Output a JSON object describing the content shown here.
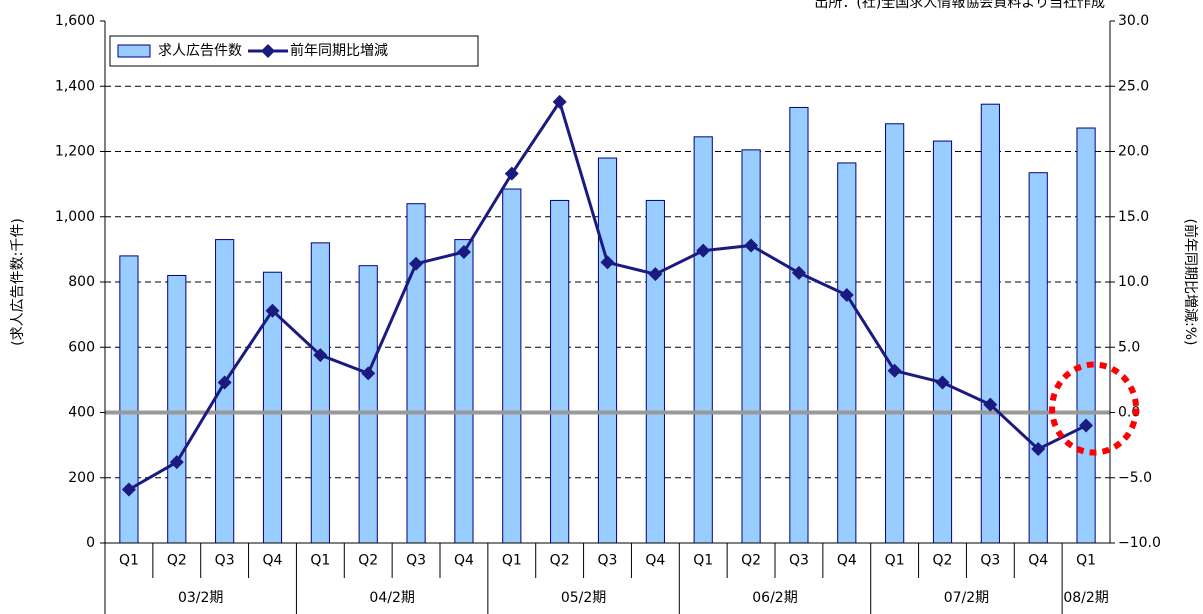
{
  "chart_data": {
    "type": "bar",
    "source": "出所：(社)全国求人情報協会資料より当社作成",
    "ylabel": "(求人広告件数:千件)",
    "y2label": "(前年同期比増減:%)",
    "categories": [
      "Q1",
      "Q2",
      "Q3",
      "Q4",
      "Q1",
      "Q2",
      "Q3",
      "Q4",
      "Q1",
      "Q2",
      "Q3",
      "Q4",
      "Q1",
      "Q2",
      "Q3",
      "Q4",
      "Q1",
      "Q2",
      "Q3",
      "Q4",
      "Q1"
    ],
    "groups": [
      {
        "label": "03/2期",
        "span": 4
      },
      {
        "label": "04/2期",
        "span": 4
      },
      {
        "label": "05/2期",
        "span": 4
      },
      {
        "label": "06/2期",
        "span": 4
      },
      {
        "label": "07/2期",
        "span": 4
      },
      {
        "label": "08/2期",
        "span": 1
      }
    ],
    "series": [
      {
        "name": "求人広告件数",
        "type": "bar",
        "color": "#99ccff",
        "values": [
          880,
          820,
          930,
          830,
          920,
          850,
          1040,
          930,
          1085,
          1050,
          1180,
          1050,
          1245,
          1205,
          1335,
          1165,
          1285,
          1232,
          1345,
          1135,
          1272
        ]
      },
      {
        "name": "前年同期比増減",
        "type": "line",
        "axis": "y2",
        "color": "#1a1a80",
        "values": [
          -5.9,
          -3.8,
          2.3,
          7.8,
          4.4,
          3.0,
          11.4,
          12.3,
          18.3,
          23.8,
          11.5,
          10.6,
          12.4,
          12.8,
          10.7,
          9.0,
          3.2,
          2.3,
          0.6,
          -2.8,
          -1.0
        ]
      }
    ],
    "ylim": [
      0,
      1600
    ],
    "yticks": [
      0,
      200,
      400,
      600,
      800,
      {
        "value": 1000,
        "label": "1,000"
      },
      {
        "value": 1200,
        "label": "1,200"
      },
      {
        "value": 1400,
        "label": "1,400"
      },
      {
        "value": 1600,
        "label": "1,600"
      }
    ],
    "y2lim": [
      -10,
      30
    ],
    "y2ticks": [
      {
        "value": -10,
        "label": "−10.0"
      },
      {
        "value": -5,
        "label": "−5.0"
      },
      {
        "value": 0,
        "label": "0.0"
      },
      {
        "value": 5,
        "label": "5.0"
      },
      {
        "value": 10,
        "label": "10.0"
      },
      {
        "value": 15,
        "label": "15.0"
      },
      {
        "value": 20,
        "label": "20.0"
      },
      {
        "value": 25,
        "label": "25.0"
      },
      {
        "value": 30,
        "label": "30.0"
      }
    ],
    "negative_tick_color": "#ff0000",
    "grid": true,
    "legend": "top-left"
  }
}
